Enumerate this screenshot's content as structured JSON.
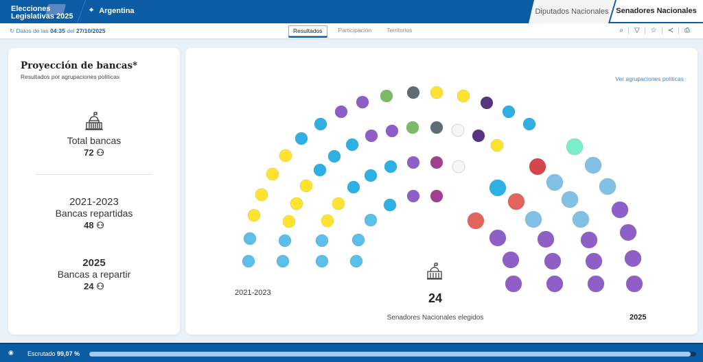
{
  "header": {
    "logo_line1": "Elecciones",
    "logo_line2": "Legislativas 2025",
    "location": "Argentina",
    "tabs": [
      {
        "label": "Diputados Nacionales"
      },
      {
        "label": "Senadores Nacionales",
        "active": true
      }
    ]
  },
  "subbar": {
    "prefix": "Datos de las",
    "time": "04:35",
    "mid": "del",
    "date": "27/10/2025",
    "nav": [
      {
        "label": "Resultados",
        "active": true
      },
      {
        "label": "Participación"
      },
      {
        "label": "Territorios"
      }
    ],
    "tools": [
      "search-icon",
      "filter-icon",
      "star-icon",
      "share-icon",
      "print-icon"
    ]
  },
  "left": {
    "title": "Proyección de bancas*",
    "subtitle": "Resultados por agrupaciones políticas",
    "total_label": "Total bancas",
    "total": "72",
    "prev_period": "2021-2023",
    "prev_label": "Bancas repartidas",
    "prev": "48",
    "new_year": "2025",
    "new_label": "Bancas a repartir",
    "new": "24"
  },
  "chart": {
    "link": "Ver agrupaciones políticas",
    "left_label": "2021-2023",
    "right_label": "2025",
    "center_value": "24",
    "center_label": "Senadores Nacionales elegidos",
    "colors": {
      "Y": "#ffe32e",
      "L": "#5bbfea",
      "B": "#2eb0e4",
      "P": "#8e5fc6",
      "G": "#7cbb66",
      "S": "#5f6d77",
      "W": "#f6f6f6",
      "D": "#563480",
      "M": "#a0408e",
      "T": "#7aeec8",
      "R": "#d6444c",
      "C": "#e2645c",
      "K": "#82c1e6"
    },
    "seats_2021_2023": [
      "L",
      "L",
      "Y",
      "Y",
      "Y",
      "Y",
      "B",
      "B",
      "P",
      "P",
      "G",
      "S",
      "Y",
      "Y",
      "D",
      "B",
      "B",
      "L",
      "L",
      "Y",
      "Y",
      "Y",
      "B",
      "B",
      "B",
      "P",
      "P",
      "G",
      "S",
      "W",
      "D",
      "Y",
      "L",
      "L",
      "Y",
      "Y",
      "B",
      "B",
      "B",
      "P",
      "M",
      "W",
      "L",
      "L",
      "L",
      "B",
      "P",
      "M"
    ],
    "seats_2025": [
      "T",
      "R",
      "K",
      "B",
      "K",
      "K",
      "C",
      "K",
      "P",
      "C",
      "K",
      "K",
      "P",
      "P",
      "P",
      "P",
      "P",
      "P",
      "P",
      "P",
      "P",
      "P",
      "P",
      "P"
    ]
  },
  "footer": {
    "label": "Escrutado",
    "value": "99,07 %",
    "progress": 99.07
  }
}
